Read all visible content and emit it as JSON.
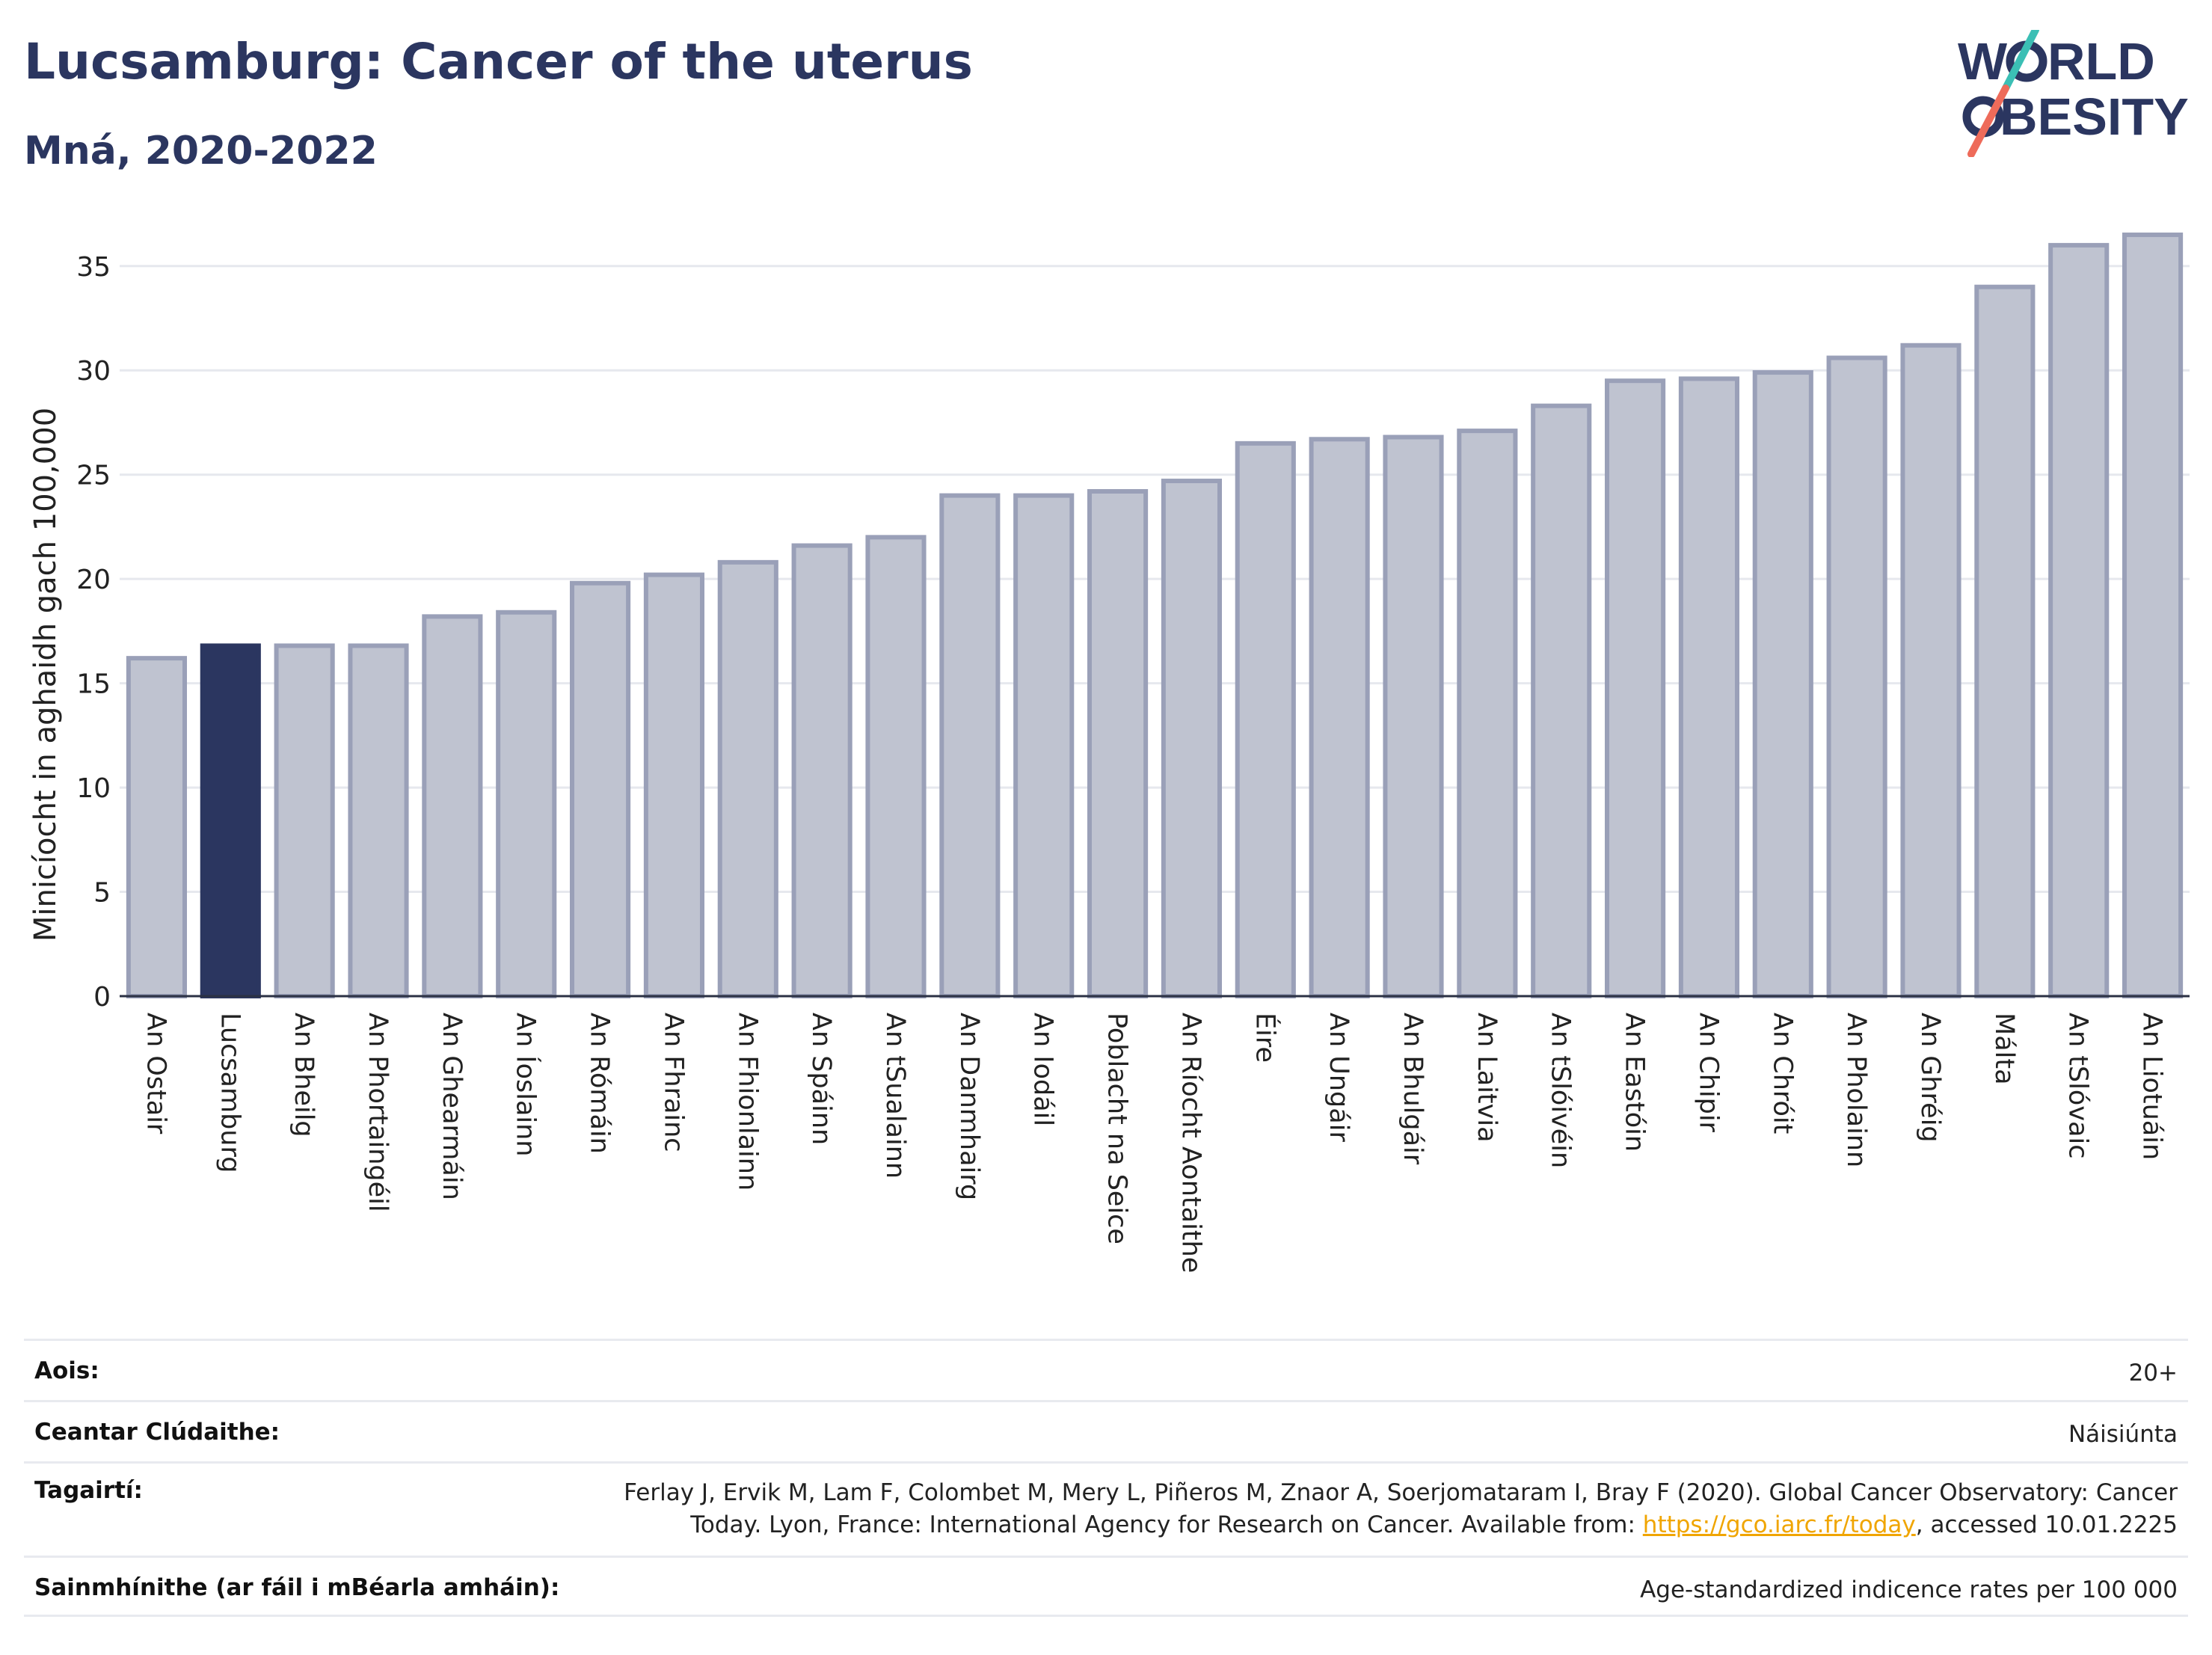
{
  "header": {
    "title": "Lucsamburg: Cancer of the uterus",
    "subtitle": "Mná, 2020-2022",
    "logo_text": "WORLD OBESITY"
  },
  "colors": {
    "bar": "#bfc3d0",
    "bar_border": "#9aa0b8",
    "highlight": "#2b3660",
    "title": "#2b3660",
    "link": "#f0a500"
  },
  "chart_data": {
    "type": "bar",
    "title": "Lucsamburg: Cancer of the uterus",
    "subtitle": "Mná, 2020-2022",
    "xlabel": "",
    "ylabel": "Minicíocht in aghaidh gach 100,000",
    "ylim": [
      0,
      37
    ],
    "yticks": [
      0,
      5,
      10,
      15,
      20,
      25,
      30,
      35
    ],
    "grid": true,
    "highlight_category": "Lucsamburg",
    "categories": [
      "An Ostair",
      "Lucsamburg",
      "An Bheilg",
      "An Phortaingéil",
      "An Ghearmáin",
      "An Íoslainn",
      "An Rómáin",
      "An Fhrainc",
      "An Fhionlainn",
      "An Spáinn",
      "An tSualainn",
      "An Danmhairg",
      "An Iodáil",
      "Poblacht na Seice",
      "An Ríocht Aontaithe",
      "Éire",
      "An Ungáir",
      "An Bhulgáir",
      "An Laitvia",
      "An tSlóivéin",
      "An Eastóin",
      "An Chipir",
      "An Chróit",
      "An Pholainn",
      "An Ghréig",
      "Málta",
      "An tSlóvaic",
      "An Liotuáin"
    ],
    "values": [
      16.2,
      16.8,
      16.8,
      16.8,
      18.2,
      18.4,
      19.8,
      20.2,
      20.8,
      21.6,
      22.0,
      24.0,
      24.0,
      24.2,
      24.7,
      26.5,
      26.7,
      26.8,
      27.1,
      28.3,
      29.5,
      29.6,
      29.9,
      30.6,
      31.2,
      34.0,
      36.0,
      36.5
    ]
  },
  "info": {
    "age": {
      "label": "Aois:",
      "value": "20+"
    },
    "coverage": {
      "label": "Ceantar Clúdaithe:",
      "value": "Náisiúnta"
    },
    "references": {
      "label": "Tagairtí:",
      "line1": "Ferlay J, Ervik M, Lam F, Colombet M, Mery L, Piñeros M, Znaor A, Soerjomataram I, Bray F (2020). Global Cancer Observatory: Cancer",
      "line2_before": "Today. Lyon, France: International Agency for Research on Cancer. Available from: ",
      "link": "https://gco.iarc.fr/today",
      "line2_after": ", accessed 10.01.2225"
    },
    "definitions": {
      "label": "Sainmhínithe (ar fáil i mBéarla amháin):",
      "value": "Age-standardized indicence rates per 100 000"
    }
  }
}
